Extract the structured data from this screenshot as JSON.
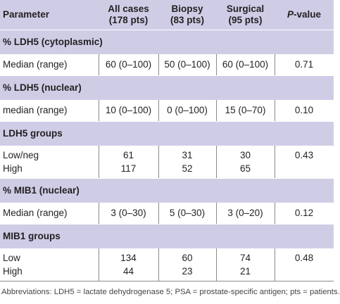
{
  "header": {
    "columns": [
      [
        "Parameter"
      ],
      [
        "All cases",
        "(178 pts)"
      ],
      [
        "Biopsy",
        "(83 pts)"
      ],
      [
        "Surgical",
        "(95 pts)"
      ],
      {
        "italic": "P",
        "text": "-value"
      }
    ]
  },
  "sections": [
    {
      "title": "% LDH5 (cytoplasmic)",
      "rows": [
        [
          "Median (range)",
          "60 (0–100)",
          "50 (0–100)",
          "60 (0–100)",
          "0.71"
        ]
      ]
    },
    {
      "title": "% LDH5 (nuclear)",
      "rows": [
        [
          "median (range)",
          "10 (0–100)",
          "0 (0–100)",
          "15 (0–70)",
          "0.10"
        ]
      ]
    },
    {
      "title": "LDH5 groups",
      "rows": [
        [
          "Low/neg",
          "61",
          "31",
          "30",
          "0.43"
        ],
        [
          "High",
          "117",
          "52",
          "65"
        ]
      ]
    },
    {
      "title": "% MIB1 (nuclear)",
      "rows": [
        [
          "Median (range)",
          "3 (0–30)",
          "5 (0–30)",
          "3 (0–20)",
          "0.12"
        ]
      ]
    },
    {
      "title": "MIB1 groups",
      "rows": [
        [
          "Low",
          "134",
          "60",
          "74",
          "0.48"
        ],
        [
          "High",
          "44",
          "23",
          "21"
        ]
      ]
    }
  ],
  "footnote": "Abbreviations: LDH5 = lactate dehydrogenase 5; PSA = prostate-specific antigen; pts = patients."
}
